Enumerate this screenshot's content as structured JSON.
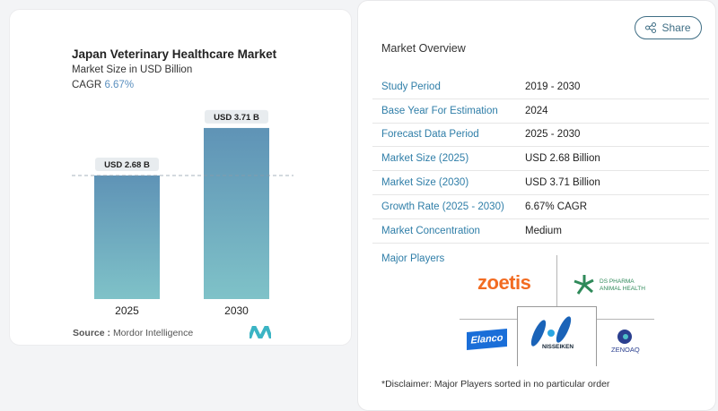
{
  "chart_data": {
    "type": "bar",
    "title": "Japan Veterinary Healthcare Market",
    "subtitle": "Market Size in USD Billion",
    "cagr_label": "CAGR",
    "cagr_value": "6.67%",
    "categories": [
      "2025",
      "2030"
    ],
    "values": [
      2.68,
      3.71
    ],
    "data_labels": [
      "USD 2.68 B",
      "USD 3.71 B"
    ],
    "reference_line": 2.68,
    "bar_gradient": [
      "#5f93b6",
      "#7fc2c8"
    ],
    "grid": false
  },
  "source": {
    "label": "Source :",
    "value": "Mordor Intelligence"
  },
  "share_label": "Share",
  "overview": {
    "title": "Market Overview",
    "rows": [
      {
        "k": "Study Period",
        "v": "2019 - 2030"
      },
      {
        "k": "Base Year For Estimation",
        "v": "2024"
      },
      {
        "k": "Forecast Data Period",
        "v": "2025 - 2030"
      },
      {
        "k": "Market Size (2025)",
        "v": "USD 2.68 Billion"
      },
      {
        "k": "Market Size (2030)",
        "v": "USD 3.71 Billion"
      },
      {
        "k": "Growth Rate (2025 - 2030)",
        "v": "6.67% CAGR"
      },
      {
        "k": "Market Concentration",
        "v": "Medium"
      }
    ]
  },
  "players": {
    "title": "Major Players",
    "logos": [
      "zoetis",
      "DS PHARMA",
      "ANIMAL HEALTH",
      "Elanco",
      "NISSEIKEN",
      "ZENOAQ"
    ]
  },
  "disclaimer": "*Disclaimer: Major Players sorted in no particular order"
}
